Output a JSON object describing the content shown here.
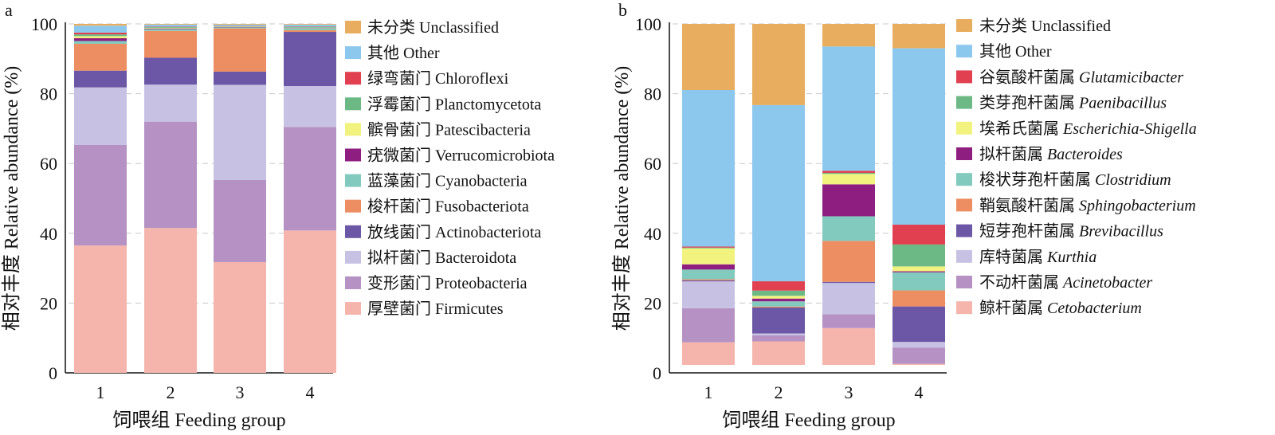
{
  "chart_data": [
    {
      "panel": "a",
      "type": "bar",
      "stacked": true,
      "categories": [
        "1",
        "2",
        "3",
        "4"
      ],
      "xlabel": "饲喂组 Feeding group",
      "ylabel": "相对丰度 Relative abundance (%)",
      "ylim": [
        0,
        100
      ],
      "yticks": [
        "0",
        "20",
        "40",
        "60",
        "80",
        "100"
      ],
      "grid": "horizontal dashed",
      "legend_position": "right",
      "series": [
        {
          "name": "厚壁菌门 Firmicutes",
          "color": "#F5B5AD",
          "values": [
            36.5,
            41.5,
            32,
            41
          ]
        },
        {
          "name": "变形菌门 Proteobacteria",
          "color": "#B592C3",
          "values": [
            28.8,
            30.5,
            23.7,
            29.8
          ]
        },
        {
          "name": "拟杆菌门 Bacteroidota",
          "color": "#C7C2E3",
          "values": [
            16.5,
            10.6,
            27.5,
            11.8
          ]
        },
        {
          "name": "放线菌门 Actinobacteriota",
          "color": "#6B57A5",
          "values": [
            4.8,
            7.7,
            3.8,
            15.6
          ]
        },
        {
          "name": "梭杆菌门 Fusobacteriota",
          "color": "#EC8E62",
          "values": [
            7.7,
            7.7,
            12.5,
            0.5
          ]
        },
        {
          "name": "蓝藻菌门 Cyanobacteria",
          "color": "#82C9BE",
          "values": [
            0.8,
            0.5,
            0.3,
            0.5
          ]
        },
        {
          "name": "疣微菌门 Verrucomicrobiota",
          "color": "#8E1F80",
          "values": [
            0.8,
            0.2,
            0.1,
            0.1
          ]
        },
        {
          "name": "髌骨菌门 Patescibacteria",
          "color": "#F2F27E",
          "values": [
            0.6,
            0.2,
            0.1,
            0.1
          ]
        },
        {
          "name": "浮霉菌门 Planctomycetota",
          "color": "#6CB985",
          "values": [
            0.5,
            0.2,
            0.1,
            0.2
          ]
        },
        {
          "name": "绿弯菌门 Chloroflexi",
          "color": "#E04050",
          "values": [
            0.5,
            0.1,
            0.1,
            0.1
          ]
        },
        {
          "name": "其他 Other",
          "color": "#8CC8EE",
          "values": [
            2.0,
            0.6,
            0.4,
            0.6
          ]
        },
        {
          "name": "未分类 Unclassified",
          "color": "#E8AD5E",
          "values": [
            0.5,
            0.2,
            0.2,
            0.2
          ]
        }
      ]
    },
    {
      "panel": "b",
      "type": "bar",
      "stacked": true,
      "categories": [
        "1",
        "2",
        "3",
        "4"
      ],
      "xlabel": "饲喂组 Feeding group",
      "ylabel": "相对丰度 Relative abundance (%)",
      "ylim": [
        0,
        100
      ],
      "yticks": [
        "0",
        "20",
        "40",
        "60",
        "80",
        "100"
      ],
      "grid": "horizontal dashed",
      "legend_position": "right",
      "series": [
        {
          "name_cn": "鲸杆菌属",
          "name_latin": "Cetobacterium",
          "color": "#F5B5AD",
          "values": [
            6.5,
            6.8,
            10.6,
            0.3
          ]
        },
        {
          "name_cn": "不动杆菌属",
          "name_latin": "Acinetobacter",
          "color": "#B592C3",
          "values": [
            9.8,
            1.8,
            4.0,
            4.7
          ]
        },
        {
          "name_cn": "库特菌属",
          "name_latin": "Kurthia",
          "color": "#C7C2E3",
          "values": [
            7.7,
            0.5,
            9.0,
            1.6
          ]
        },
        {
          "name_cn": "短芽孢杆菌属",
          "name_latin": "Brevibacillus",
          "color": "#6B57A5",
          "values": [
            0.3,
            7.5,
            0.3,
            10.2
          ]
        },
        {
          "name_cn": "鞘氨酸杆菌属",
          "name_latin": "Sphingobacterium",
          "color": "#EC8E62",
          "values": [
            0.3,
            0.3,
            11.8,
            4.6
          ]
        },
        {
          "name_cn": "梭状芽孢杆菌属",
          "name_latin": "Clostridium",
          "color": "#82C9BE",
          "values": [
            2.8,
            1.5,
            7.1,
            5.2
          ]
        },
        {
          "name_cn": "拟杆菌属",
          "name_latin": "Bacteroides",
          "color": "#8E1F80",
          "values": [
            1.5,
            0.8,
            9.2,
            0.3
          ]
        },
        {
          "name_cn": "埃希氏菌属",
          "name_latin": "Escherichia-Shigella",
          "color": "#F2F27E",
          "values": [
            4.6,
            0.8,
            3.0,
            1.4
          ]
        },
        {
          "name_cn": "类芽孢杆菌属",
          "name_latin": "Paenibacillus",
          "color": "#6CB985",
          "values": [
            0.2,
            1.5,
            0.3,
            6.3
          ]
        },
        {
          "name_cn": "谷氨酸杆菌属",
          "name_latin": "Glutamicibacter",
          "color": "#E04050",
          "values": [
            0.3,
            2.7,
            0.6,
            5.7
          ]
        },
        {
          "name_cn": "其他",
          "name_latin": "Other",
          "color": "#8CC8EE",
          "values": [
            45.0,
            51.0,
            35.8,
            50.7
          ]
        },
        {
          "name_cn": "未分类",
          "name_latin": "Unclassified",
          "color": "#E8AD5E",
          "values": [
            19.0,
            23.5,
            6.5,
            7.0
          ]
        }
      ]
    }
  ]
}
